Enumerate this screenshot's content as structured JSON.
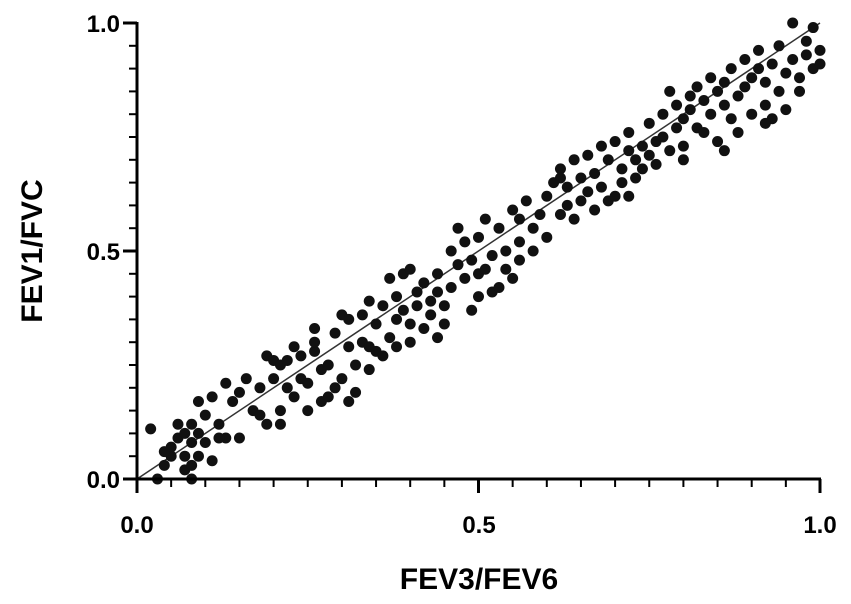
{
  "chart_data": {
    "type": "scatter",
    "title": "",
    "xlabel": "FEV3/FEV6",
    "ylabel": "FEV1/FVC",
    "xlim": [
      0.0,
      1.0
    ],
    "ylim": [
      0.0,
      1.0
    ],
    "x_ticks": [
      {
        "value": 0.0,
        "label": "0.0"
      },
      {
        "value": 0.5,
        "label": "0.5"
      },
      {
        "value": 1.0,
        "label": "1.0"
      }
    ],
    "y_ticks": [
      {
        "value": 0.0,
        "label": "0.0"
      },
      {
        "value": 0.5,
        "label": "0.5"
      },
      {
        "value": 1.0,
        "label": "1.0"
      }
    ],
    "minor_tick_step": 0.05,
    "grid": false,
    "reference_line": {
      "x": [
        0.0,
        1.0
      ],
      "y": [
        0.0,
        1.0
      ]
    },
    "colors": {
      "points": "#111111",
      "axes": "#000000",
      "line": "#333333"
    },
    "points": [
      [
        0.02,
        0.11
      ],
      [
        0.03,
        0.0
      ],
      [
        0.04,
        0.03
      ],
      [
        0.05,
        0.05
      ],
      [
        0.05,
        0.07
      ],
      [
        0.06,
        0.09
      ],
      [
        0.06,
        0.12
      ],
      [
        0.07,
        0.1
      ],
      [
        0.07,
        0.05
      ],
      [
        0.07,
        0.02
      ],
      [
        0.08,
        0.08
      ],
      [
        0.08,
        0.12
      ],
      [
        0.08,
        0.03
      ],
      [
        0.09,
        0.1
      ],
      [
        0.09,
        0.05
      ],
      [
        0.09,
        0.17
      ],
      [
        0.1,
        0.14
      ],
      [
        0.1,
        0.08
      ],
      [
        0.11,
        0.04
      ],
      [
        0.11,
        0.18
      ],
      [
        0.12,
        0.12
      ],
      [
        0.13,
        0.21
      ],
      [
        0.13,
        0.09
      ],
      [
        0.14,
        0.17
      ],
      [
        0.15,
        0.09
      ],
      [
        0.15,
        0.19
      ],
      [
        0.17,
        0.15
      ],
      [
        0.18,
        0.2
      ],
      [
        0.19,
        0.12
      ],
      [
        0.19,
        0.27
      ],
      [
        0.2,
        0.22
      ],
      [
        0.2,
        0.26
      ],
      [
        0.21,
        0.12
      ],
      [
        0.21,
        0.15
      ],
      [
        0.21,
        0.25
      ],
      [
        0.22,
        0.26
      ],
      [
        0.22,
        0.2
      ],
      [
        0.23,
        0.18
      ],
      [
        0.23,
        0.29
      ],
      [
        0.24,
        0.22
      ],
      [
        0.24,
        0.27
      ],
      [
        0.25,
        0.15
      ],
      [
        0.25,
        0.21
      ],
      [
        0.26,
        0.28
      ],
      [
        0.26,
        0.3
      ],
      [
        0.27,
        0.24
      ],
      [
        0.27,
        0.17
      ],
      [
        0.28,
        0.18
      ],
      [
        0.28,
        0.25
      ],
      [
        0.29,
        0.32
      ],
      [
        0.29,
        0.2
      ],
      [
        0.3,
        0.36
      ],
      [
        0.3,
        0.22
      ],
      [
        0.31,
        0.29
      ],
      [
        0.31,
        0.17
      ],
      [
        0.31,
        0.35
      ],
      [
        0.32,
        0.19
      ],
      [
        0.32,
        0.25
      ],
      [
        0.33,
        0.3
      ],
      [
        0.33,
        0.36
      ],
      [
        0.34,
        0.24
      ],
      [
        0.34,
        0.39
      ],
      [
        0.35,
        0.28
      ],
      [
        0.35,
        0.34
      ],
      [
        0.36,
        0.38
      ],
      [
        0.36,
        0.27
      ],
      [
        0.37,
        0.31
      ],
      [
        0.37,
        0.44
      ],
      [
        0.38,
        0.35
      ],
      [
        0.38,
        0.4
      ],
      [
        0.38,
        0.29
      ],
      [
        0.39,
        0.45
      ],
      [
        0.39,
        0.37
      ],
      [
        0.4,
        0.34
      ],
      [
        0.4,
        0.3
      ],
      [
        0.41,
        0.41
      ],
      [
        0.41,
        0.38
      ],
      [
        0.42,
        0.33
      ],
      [
        0.42,
        0.43
      ],
      [
        0.43,
        0.39
      ],
      [
        0.43,
        0.36
      ],
      [
        0.44,
        0.45
      ],
      [
        0.44,
        0.41
      ],
      [
        0.45,
        0.38
      ],
      [
        0.45,
        0.34
      ],
      [
        0.46,
        0.5
      ],
      [
        0.46,
        0.42
      ],
      [
        0.47,
        0.47
      ],
      [
        0.47,
        0.55
      ],
      [
        0.48,
        0.44
      ],
      [
        0.48,
        0.52
      ],
      [
        0.49,
        0.37
      ],
      [
        0.49,
        0.48
      ],
      [
        0.5,
        0.45
      ],
      [
        0.5,
        0.53
      ],
      [
        0.51,
        0.57
      ],
      [
        0.51,
        0.46
      ],
      [
        0.52,
        0.41
      ],
      [
        0.52,
        0.49
      ],
      [
        0.53,
        0.42
      ],
      [
        0.53,
        0.55
      ],
      [
        0.54,
        0.5
      ],
      [
        0.54,
        0.46
      ],
      [
        0.55,
        0.59
      ],
      [
        0.55,
        0.44
      ],
      [
        0.56,
        0.52
      ],
      [
        0.56,
        0.57
      ],
      [
        0.57,
        0.61
      ],
      [
        0.58,
        0.55
      ],
      [
        0.58,
        0.5
      ],
      [
        0.59,
        0.58
      ],
      [
        0.6,
        0.62
      ],
      [
        0.6,
        0.53
      ],
      [
        0.61,
        0.65
      ],
      [
        0.62,
        0.58
      ],
      [
        0.62,
        0.68
      ],
      [
        0.63,
        0.6
      ],
      [
        0.63,
        0.64
      ],
      [
        0.64,
        0.57
      ],
      [
        0.65,
        0.66
      ],
      [
        0.65,
        0.61
      ],
      [
        0.66,
        0.71
      ],
      [
        0.66,
        0.63
      ],
      [
        0.67,
        0.59
      ],
      [
        0.67,
        0.67
      ],
      [
        0.68,
        0.73
      ],
      [
        0.68,
        0.64
      ],
      [
        0.69,
        0.61
      ],
      [
        0.69,
        0.7
      ],
      [
        0.7,
        0.62
      ],
      [
        0.7,
        0.74
      ],
      [
        0.71,
        0.68
      ],
      [
        0.71,
        0.65
      ],
      [
        0.72,
        0.72
      ],
      [
        0.72,
        0.76
      ],
      [
        0.73,
        0.66
      ],
      [
        0.73,
        0.7
      ],
      [
        0.74,
        0.73
      ],
      [
        0.74,
        0.68
      ],
      [
        0.75,
        0.78
      ],
      [
        0.75,
        0.71
      ],
      [
        0.76,
        0.74
      ],
      [
        0.76,
        0.69
      ],
      [
        0.77,
        0.8
      ],
      [
        0.77,
        0.75
      ],
      [
        0.78,
        0.72
      ],
      [
        0.78,
        0.85
      ],
      [
        0.79,
        0.77
      ],
      [
        0.79,
        0.82
      ],
      [
        0.8,
        0.73
      ],
      [
        0.8,
        0.79
      ],
      [
        0.81,
        0.84
      ],
      [
        0.81,
        0.81
      ],
      [
        0.82,
        0.77
      ],
      [
        0.82,
        0.86
      ],
      [
        0.83,
        0.83
      ],
      [
        0.83,
        0.76
      ],
      [
        0.84,
        0.88
      ],
      [
        0.84,
        0.8
      ],
      [
        0.85,
        0.85
      ],
      [
        0.85,
        0.74
      ],
      [
        0.86,
        0.82
      ],
      [
        0.86,
        0.87
      ],
      [
        0.87,
        0.79
      ],
      [
        0.87,
        0.9
      ],
      [
        0.88,
        0.84
      ],
      [
        0.88,
        0.76
      ],
      [
        0.89,
        0.92
      ],
      [
        0.89,
        0.86
      ],
      [
        0.9,
        0.8
      ],
      [
        0.9,
        0.88
      ],
      [
        0.91,
        0.9
      ],
      [
        0.91,
        0.94
      ],
      [
        0.92,
        0.82
      ],
      [
        0.92,
        0.87
      ],
      [
        0.93,
        0.91
      ],
      [
        0.93,
        0.79
      ],
      [
        0.94,
        0.85
      ],
      [
        0.94,
        0.95
      ],
      [
        0.95,
        0.89
      ],
      [
        0.95,
        0.81
      ],
      [
        0.96,
        0.92
      ],
      [
        0.96,
        1.0
      ],
      [
        0.97,
        0.88
      ],
      [
        0.97,
        0.85
      ],
      [
        0.98,
        0.93
      ],
      [
        0.98,
        0.96
      ],
      [
        0.99,
        0.9
      ],
      [
        0.99,
        0.99
      ],
      [
        1.0,
        0.94
      ],
      [
        1.0,
        0.91
      ],
      [
        0.04,
        0.06
      ],
      [
        0.08,
        0.0
      ],
      [
        0.12,
        0.09
      ],
      [
        0.16,
        0.22
      ],
      [
        0.18,
        0.14
      ],
      [
        0.26,
        0.33
      ],
      [
        0.34,
        0.29
      ],
      [
        0.4,
        0.46
      ],
      [
        0.44,
        0.31
      ],
      [
        0.5,
        0.4
      ],
      [
        0.56,
        0.48
      ],
      [
        0.62,
        0.66
      ],
      [
        0.64,
        0.7
      ],
      [
        0.72,
        0.62
      ],
      [
        0.8,
        0.7
      ],
      [
        0.86,
        0.72
      ],
      [
        0.92,
        0.78
      ]
    ]
  }
}
